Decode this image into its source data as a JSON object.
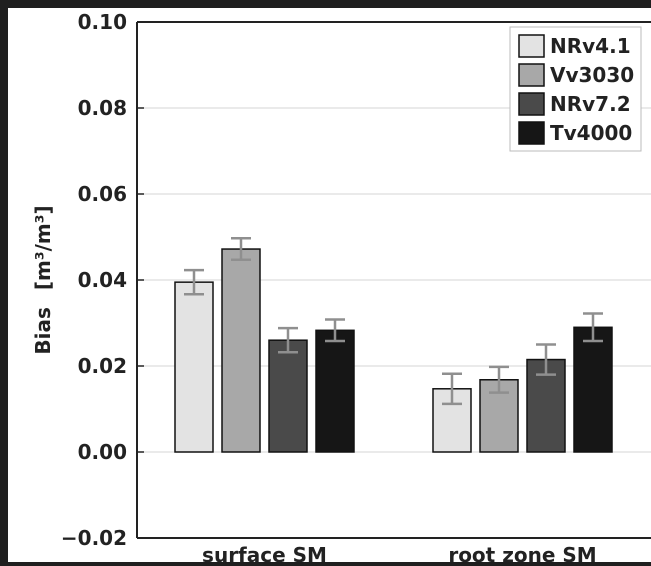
{
  "chart_data": {
    "type": "bar",
    "title": "",
    "xlabel": "",
    "ylabel": "Bias",
    "ylabel_unit": "[m³/m³]",
    "ylim": [
      -0.02,
      0.1
    ],
    "yticks": [
      -0.02,
      0.0,
      0.02,
      0.04,
      0.06,
      0.08,
      0.1
    ],
    "ytick_labels": [
      "−0.02",
      "0.00",
      "0.02",
      "0.04",
      "0.06",
      "0.08",
      "0.10"
    ],
    "grid": true,
    "legend_position": "top-right",
    "categories": [
      "surface SM",
      "root zone SM"
    ],
    "series": [
      {
        "name": "NRv4.1",
        "color": "#e3e3e3",
        "values": [
          0.0395,
          0.0147
        ],
        "errors": [
          0.0028,
          0.0035
        ]
      },
      {
        "name": "Vv3030",
        "color": "#a8a8a8",
        "values": [
          0.0472,
          0.0168
        ],
        "errors": [
          0.0025,
          0.003
        ]
      },
      {
        "name": "NRv7.2",
        "color": "#4a4a4a",
        "values": [
          0.026,
          0.0215
        ],
        "errors": [
          0.0028,
          0.0035
        ]
      },
      {
        "name": "Tv4000",
        "color": "#161616",
        "values": [
          0.0283,
          0.029
        ],
        "errors": [
          0.0025,
          0.0032
        ]
      }
    ],
    "error_bar_color": "#8f8f8f"
  }
}
